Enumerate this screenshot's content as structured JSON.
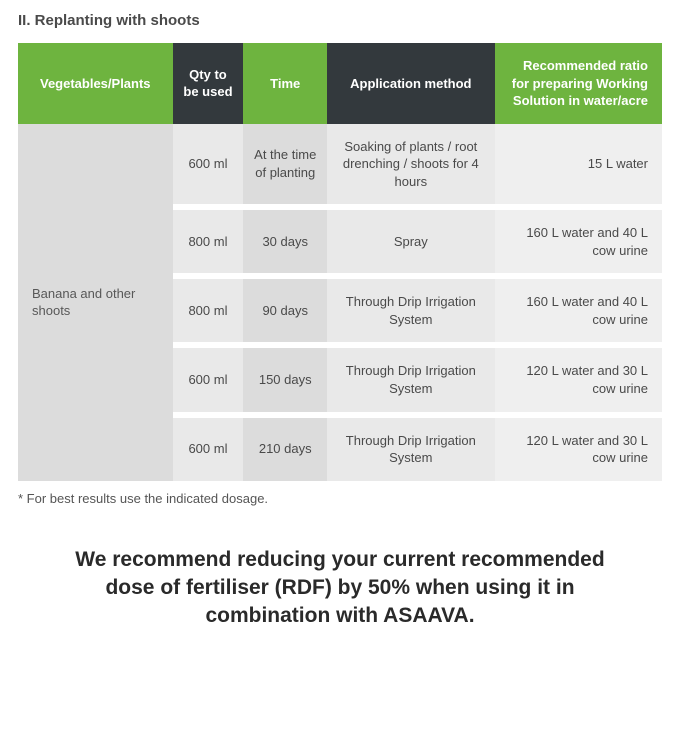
{
  "section_title": "II. Replanting with shoots",
  "colors": {
    "header_green": "#6eb43f",
    "header_dark": "#33393d",
    "row_light": "#e9e9e9",
    "row_mid": "#dcdcdc",
    "row_band": "#efefef",
    "veg_bg": "#dcdcdc",
    "text_body": "#4a4a4a"
  },
  "table": {
    "headers": {
      "veg": "Vegetables/Plants",
      "qty": "Qty to be used",
      "time": "Time",
      "method": "Application method",
      "ratio": "Recommended ratio for preparing Working Solution in water/acre"
    },
    "veg_label": "Banana and other shoots",
    "rows": [
      {
        "qty": "600 ml",
        "time": "At the time of planting",
        "method": "Soaking of plants / root drenching / shoots for 4 hours",
        "ratio": "15 L water"
      },
      {
        "qty": "800 ml",
        "time": "30 days",
        "method": "Spray",
        "ratio": "160 L water and 40 L cow urine"
      },
      {
        "qty": "800 ml",
        "time": "90 days",
        "method": "Through Drip Irrigation System",
        "ratio": "160 L water and 40 L cow urine"
      },
      {
        "qty": "600 ml",
        "time": "150 days",
        "method": "Through Drip Irrigation System",
        "ratio": "120 L water and 30 L cow urine"
      },
      {
        "qty": "600 ml",
        "time": "210 days",
        "method": "Through Drip Irrigation System",
        "ratio": "120 L water and 30 L cow urine"
      }
    ]
  },
  "footnote": "* For best results use the indicated dosage.",
  "recommendation": "We recommend reducing your current recommended dose of fertiliser (RDF) by 50% when using it in combination with ASAAVA."
}
